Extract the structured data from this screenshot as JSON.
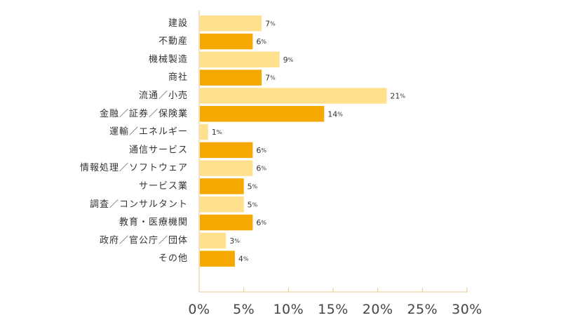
{
  "chart_data": {
    "type": "bar",
    "orientation": "horizontal",
    "categories": [
      "建設",
      "不動産",
      "機械製造",
      "商社",
      "流通／小売",
      "金融／証券／保険業",
      "運輸／エネルギー",
      "通信サービス",
      "情報処理／ソフトウェア",
      "サービス業",
      "調査／コンサルタント",
      "教育・医療機関",
      "政府／官公庁／団体",
      "その他"
    ],
    "values": [
      7,
      6,
      9,
      7,
      21,
      14,
      1,
      6,
      6,
      5,
      5,
      6,
      3,
      4
    ],
    "value_unit": "%",
    "x_ticks": [
      "0%",
      "5%",
      "10%",
      "15%",
      "20%",
      "25%",
      "30%"
    ],
    "xlim": [
      0,
      30
    ],
    "grid": false,
    "colors": {
      "light": "#FFE08C",
      "dark": "#F5A800",
      "axis": "#E3C98A"
    },
    "bar_colors": [
      "light",
      "dark",
      "light",
      "dark",
      "light",
      "dark",
      "light",
      "dark",
      "light",
      "dark",
      "light",
      "dark",
      "light",
      "dark"
    ],
    "title": "",
    "xlabel": "",
    "ylabel": ""
  }
}
